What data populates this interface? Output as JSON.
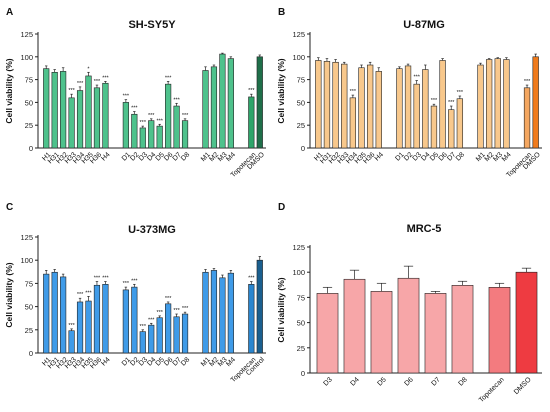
{
  "chart_data": [
    {
      "type": "bar",
      "letter": "A",
      "title": "SH-SY5Y",
      "ylabel": "Cell viability (%)",
      "ylim": [
        0,
        125
      ],
      "yticks": [
        0,
        25,
        50,
        75,
        100,
        125
      ],
      "groups": [
        {
          "categories": [
            "H1",
            "H31",
            "H32",
            "H33",
            "H34",
            "H35",
            "H36",
            "H4"
          ],
          "values": [
            87,
            83,
            84,
            55,
            63,
            79,
            66,
            71
          ],
          "errors": [
            3,
            3,
            4,
            4,
            4,
            4,
            3,
            2
          ],
          "sig": [
            "",
            "",
            "",
            "***",
            "***",
            "*",
            "***",
            "***"
          ],
          "color": "#4ec28c"
        },
        {
          "categories": [
            "D1",
            "D2",
            "D3",
            "D4",
            "D5",
            "D6",
            "D7",
            "D8"
          ],
          "values": [
            50,
            37,
            22,
            30,
            24,
            70,
            46,
            30
          ],
          "errors": [
            3,
            3,
            2,
            2,
            2,
            3,
            3,
            2
          ],
          "sig": [
            "***",
            "***",
            "***",
            "***",
            "***",
            "***",
            "***",
            "***"
          ],
          "color": "#4ec28c"
        },
        {
          "categories": [
            "M1",
            "M2",
            "M3",
            "M4"
          ],
          "values": [
            85,
            89,
            103,
            98
          ],
          "errors": [
            4,
            2,
            1,
            2
          ],
          "sig": [
            "",
            "",
            "",
            ""
          ],
          "color": "#4ec28c"
        },
        {
          "categories": [
            "Topotecan",
            "DMSO"
          ],
          "values": [
            56,
            100
          ],
          "errors": [
            3,
            2
          ],
          "sig": [
            "***",
            ""
          ],
          "colors": [
            "#2ea56a",
            "#1f6f4a"
          ]
        }
      ]
    },
    {
      "type": "bar",
      "letter": "B",
      "title": "U-87MG",
      "ylabel": "Cell viability (%)",
      "ylim": [
        0,
        125
      ],
      "yticks": [
        0,
        25,
        50,
        75,
        100,
        125
      ],
      "groups": [
        {
          "categories": [
            "H1",
            "H31",
            "H32",
            "H33",
            "H34",
            "H35",
            "H36",
            "H4"
          ],
          "values": [
            96,
            95,
            94,
            92,
            55,
            88,
            91,
            84
          ],
          "errors": [
            3,
            3,
            3,
            2,
            3,
            3,
            3,
            4
          ],
          "sig": [
            "",
            "",
            "",
            "",
            "***",
            "",
            "",
            ""
          ],
          "color": "#f8c88c"
        },
        {
          "categories": [
            "D1",
            "D2",
            "D3",
            "D4",
            "D5",
            "D6",
            "D7",
            "D8"
          ],
          "values": [
            87,
            90,
            70,
            86,
            46,
            96,
            42,
            54
          ],
          "errors": [
            2,
            2,
            4,
            5,
            2,
            2,
            4,
            3
          ],
          "sig": [
            "",
            "",
            "***",
            "",
            "***",
            "",
            "***",
            "***"
          ],
          "color": "#f8c88c"
        },
        {
          "categories": [
            "M1",
            "M2",
            "M3",
            "M4"
          ],
          "values": [
            91,
            97,
            98,
            97
          ],
          "errors": [
            2,
            1,
            1,
            2
          ],
          "sig": [
            "",
            "",
            "",
            ""
          ],
          "color": "#f8c88c"
        },
        {
          "categories": [
            "Topotecan",
            "DMSO"
          ],
          "values": [
            66,
            100
          ],
          "errors": [
            3,
            3
          ],
          "sig": [
            "***",
            ""
          ],
          "colors": [
            "#f5a760",
            "#f07b1c"
          ]
        }
      ]
    },
    {
      "type": "bar",
      "letter": "C",
      "title": "U-373MG",
      "ylabel": "Cell viability (%)",
      "ylim": [
        0,
        125
      ],
      "yticks": [
        0,
        25,
        50,
        75,
        100,
        125
      ],
      "groups": [
        {
          "categories": [
            "H1",
            "H31",
            "H32",
            "H33",
            "H34",
            "H35",
            "H36",
            "H4"
          ],
          "values": [
            85,
            87,
            82,
            24,
            55,
            56,
            73,
            74
          ],
          "errors": [
            4,
            3,
            3,
            2,
            4,
            5,
            4,
            3
          ],
          "sig": [
            "",
            "",
            "",
            "***",
            "***",
            "***",
            "***",
            "***"
          ],
          "color": "#3f9be8"
        },
        {
          "categories": [
            "D1",
            "D2",
            "D3",
            "D4",
            "D5",
            "D6",
            "D7",
            "D8"
          ],
          "values": [
            68,
            71,
            23,
            30,
            38,
            53,
            39,
            42
          ],
          "errors": [
            3,
            3,
            2,
            2,
            2,
            2,
            3,
            2
          ],
          "sig": [
            "***",
            "***",
            "***",
            "***",
            "***",
            "***",
            "***",
            "***"
          ],
          "color": "#3f9be8"
        },
        {
          "categories": [
            "M1",
            "M2",
            "M3",
            "M4"
          ],
          "values": [
            87,
            89,
            81,
            86
          ],
          "errors": [
            3,
            2,
            3,
            3
          ],
          "sig": [
            "",
            "",
            "",
            ""
          ],
          "color": "#3f9be8"
        },
        {
          "categories": [
            "Topotecan",
            "Control"
          ],
          "values": [
            74,
            100
          ],
          "errors": [
            3,
            4
          ],
          "sig": [
            "***",
            ""
          ],
          "colors": [
            "#2a86cf",
            "#1a5f8f"
          ]
        }
      ]
    },
    {
      "type": "bar",
      "letter": "D",
      "title": "MRC-5",
      "ylabel": "Cell viability (%)",
      "ylim": [
        0,
        125
      ],
      "yticks": [
        0,
        25,
        50,
        75,
        100,
        125
      ],
      "groups": [
        {
          "categories": [
            "D3",
            "D4",
            "D5",
            "D6",
            "D7",
            "D8"
          ],
          "values": [
            79,
            93,
            81,
            94,
            79,
            87
          ],
          "errors": [
            6,
            9,
            8,
            12,
            2,
            4
          ],
          "sig": [
            "",
            "",
            "",
            "",
            "",
            ""
          ],
          "color": "#f7a6a8"
        },
        {
          "categories": [
            "Topotecan",
            "DMSO"
          ],
          "values": [
            85,
            100
          ],
          "errors": [
            4,
            4
          ],
          "sig": [
            "",
            ""
          ],
          "colors": [
            "#f37b7f",
            "#ee3b41"
          ]
        }
      ]
    }
  ]
}
